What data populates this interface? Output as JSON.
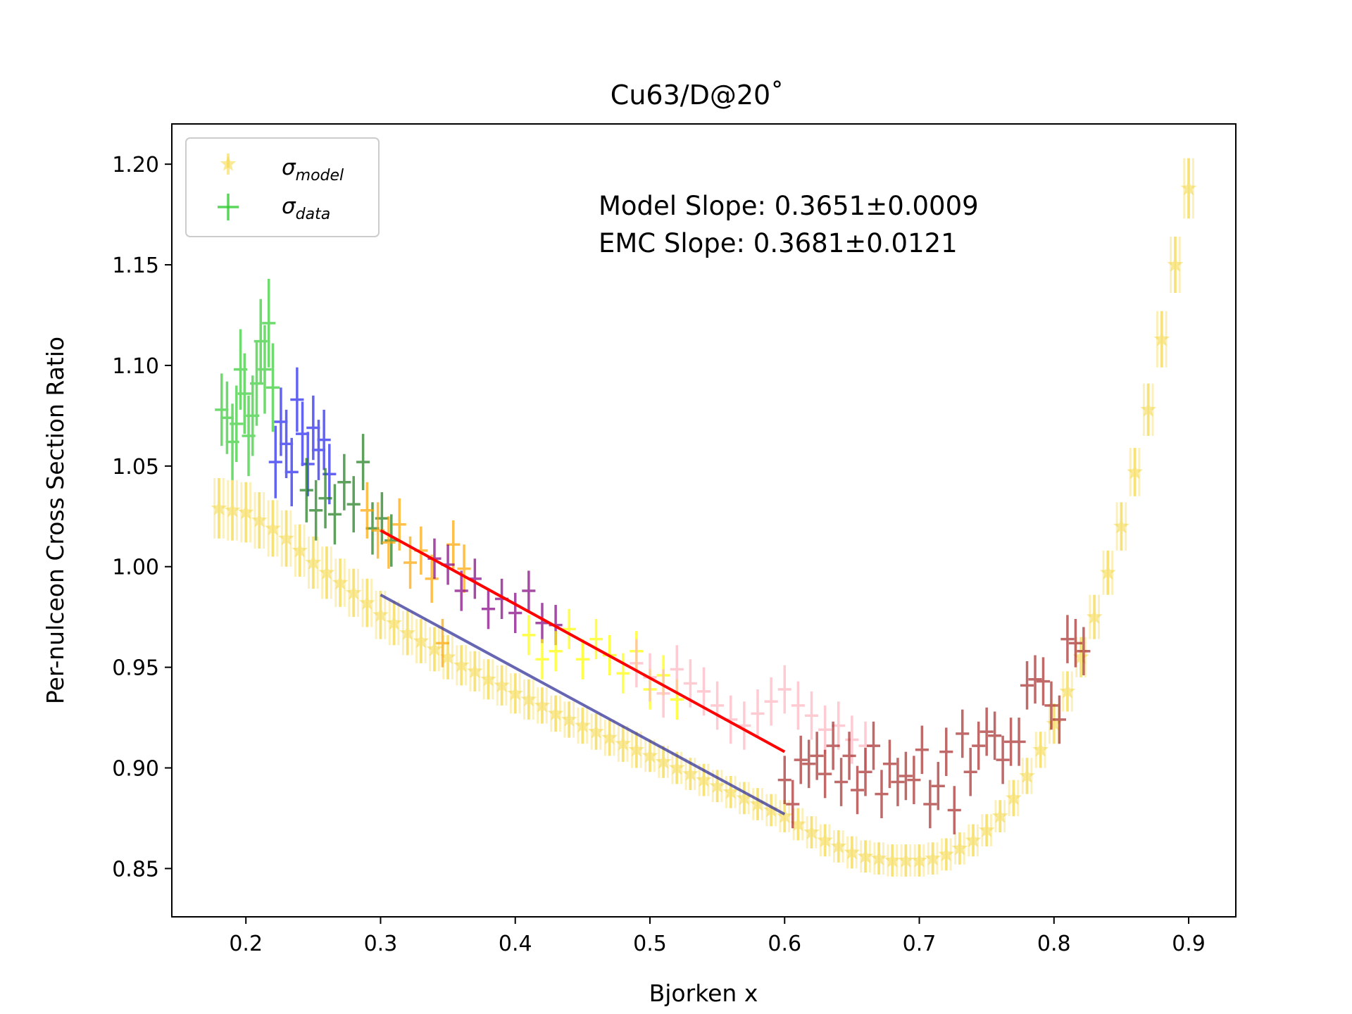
{
  "chart_data": {
    "type": "scatter",
    "title": "Cu63/D@20˚",
    "xlabel": "Bjorken x",
    "ylabel": "Per-nulceon Cross Section Ratio",
    "xlim": [
      0.145,
      0.935
    ],
    "ylim": [
      0.826,
      1.22
    ],
    "xticks": [
      0.2,
      0.3,
      0.4,
      0.5,
      0.6,
      0.7,
      0.8,
      0.9
    ],
    "xtick_labels": [
      "0.2",
      "0.3",
      "0.4",
      "0.5",
      "0.6",
      "0.7",
      "0.8",
      "0.9"
    ],
    "yticks": [
      0.85,
      0.9,
      0.95,
      1.0,
      1.05,
      1.1,
      1.15,
      1.2
    ],
    "ytick_labels": [
      "0.85",
      "0.90",
      "0.95",
      "1.00",
      "1.05",
      "1.10",
      "1.15",
      "1.20"
    ],
    "grid": false,
    "legend_position": "upper-left",
    "legend": [
      {
        "symbol": "σ",
        "sub": "model",
        "color": "#f5d742",
        "marker": "star"
      },
      {
        "symbol": "σ",
        "sub": "data",
        "color": "#33cc33",
        "marker": "plus"
      }
    ],
    "annotations": [
      "Model Slope: 0.3651±0.0009",
      "EMC Slope: 0.3681±0.0121"
    ],
    "fit_lines": [
      {
        "name": "data fit",
        "color": "#ff0000",
        "x": [
          0.3,
          0.6
        ],
        "y": [
          1.018,
          0.908
        ]
      },
      {
        "name": "model fit",
        "color": "#333399",
        "x": [
          0.3,
          0.6
        ],
        "y": [
          0.986,
          0.877
        ]
      }
    ],
    "model_series": {
      "color": "#f5d742",
      "x": [
        0.18,
        0.19,
        0.2,
        0.21,
        0.22,
        0.23,
        0.24,
        0.25,
        0.26,
        0.27,
        0.28,
        0.29,
        0.3,
        0.31,
        0.32,
        0.33,
        0.34,
        0.35,
        0.36,
        0.37,
        0.38,
        0.39,
        0.4,
        0.41,
        0.42,
        0.43,
        0.44,
        0.45,
        0.46,
        0.47,
        0.48,
        0.49,
        0.5,
        0.51,
        0.52,
        0.53,
        0.54,
        0.55,
        0.56,
        0.57,
        0.58,
        0.59,
        0.6,
        0.61,
        0.62,
        0.63,
        0.64,
        0.65,
        0.66,
        0.67,
        0.68,
        0.69,
        0.7,
        0.71,
        0.72,
        0.73,
        0.74,
        0.75,
        0.76,
        0.77,
        0.78,
        0.79,
        0.8,
        0.81,
        0.82,
        0.83,
        0.84,
        0.85,
        0.86,
        0.87,
        0.88,
        0.89,
        0.9
      ],
      "y": [
        1.029,
        1.028,
        1.027,
        1.023,
        1.019,
        1.014,
        1.008,
        1.002,
        0.997,
        0.992,
        0.987,
        0.982,
        0.976,
        0.972,
        0.967,
        0.963,
        0.959,
        0.955,
        0.951,
        0.948,
        0.944,
        0.941,
        0.937,
        0.934,
        0.931,
        0.927,
        0.924,
        0.921,
        0.918,
        0.915,
        0.912,
        0.909,
        0.906,
        0.903,
        0.9,
        0.897,
        0.894,
        0.891,
        0.888,
        0.885,
        0.882,
        0.879,
        0.876,
        0.872,
        0.868,
        0.864,
        0.861,
        0.858,
        0.856,
        0.855,
        0.854,
        0.854,
        0.854,
        0.855,
        0.857,
        0.86,
        0.864,
        0.869,
        0.876,
        0.885,
        0.896,
        0.909,
        0.922,
        0.938,
        0.955,
        0.975,
        0.997,
        1.02,
        1.047,
        1.078,
        1.113,
        1.15,
        1.188
      ],
      "err": [
        0.015,
        0.015,
        0.015,
        0.014,
        0.014,
        0.014,
        0.013,
        0.013,
        0.013,
        0.012,
        0.012,
        0.012,
        0.012,
        0.011,
        0.011,
        0.011,
        0.011,
        0.011,
        0.01,
        0.01,
        0.01,
        0.01,
        0.01,
        0.01,
        0.009,
        0.009,
        0.009,
        0.009,
        0.009,
        0.009,
        0.009,
        0.009,
        0.008,
        0.008,
        0.008,
        0.008,
        0.008,
        0.008,
        0.008,
        0.008,
        0.008,
        0.008,
        0.008,
        0.008,
        0.008,
        0.008,
        0.008,
        0.008,
        0.008,
        0.008,
        0.008,
        0.008,
        0.008,
        0.008,
        0.008,
        0.008,
        0.008,
        0.008,
        0.008,
        0.009,
        0.009,
        0.009,
        0.01,
        0.01,
        0.01,
        0.011,
        0.011,
        0.012,
        0.012,
        0.013,
        0.014,
        0.014,
        0.015
      ]
    },
    "data_series": [
      {
        "color": "#33cc33",
        "x": [
          0.182,
          0.186,
          0.19,
          0.193,
          0.196,
          0.199,
          0.202,
          0.205,
          0.208,
          0.211,
          0.214,
          0.217,
          0.22
        ],
        "y": [
          1.078,
          1.074,
          1.062,
          1.071,
          1.098,
          1.086,
          1.065,
          1.075,
          1.091,
          1.112,
          1.098,
          1.121,
          1.089
        ],
        "err": [
          0.018,
          0.018,
          0.019,
          0.019,
          0.02,
          0.02,
          0.02,
          0.02,
          0.021,
          0.021,
          0.022,
          0.022,
          0.022
        ]
      },
      {
        "color": "#2222ee",
        "x": [
          0.222,
          0.226,
          0.23,
          0.234,
          0.238,
          0.242,
          0.246,
          0.25,
          0.254,
          0.258,
          0.262
        ],
        "y": [
          1.052,
          1.072,
          1.061,
          1.047,
          1.083,
          1.066,
          1.051,
          1.069,
          1.058,
          1.063,
          1.046
        ],
        "err": [
          0.018,
          0.017,
          0.017,
          0.017,
          0.016,
          0.016,
          0.016,
          0.016,
          0.015,
          0.015,
          0.015
        ]
      },
      {
        "color": "#1a7a1a",
        "x": [
          0.245,
          0.252,
          0.259,
          0.266,
          0.273,
          0.28,
          0.287,
          0.294,
          0.301,
          0.308
        ],
        "y": [
          1.038,
          1.028,
          1.034,
          1.026,
          1.042,
          1.031,
          1.052,
          1.019,
          1.024,
          1.013
        ],
        "err": [
          0.016,
          0.015,
          0.015,
          0.015,
          0.014,
          0.014,
          0.014,
          0.013,
          0.013,
          0.013
        ]
      },
      {
        "color": "#ffa500",
        "x": [
          0.29,
          0.298,
          0.306,
          0.314,
          0.322,
          0.33,
          0.338,
          0.346,
          0.354,
          0.362
        ],
        "y": [
          1.028,
          1.018,
          1.012,
          1.021,
          1.002,
          1.008,
          0.994,
          0.962,
          1.011,
          0.999
        ],
        "err": [
          0.014,
          0.014,
          0.013,
          0.013,
          0.013,
          0.012,
          0.012,
          0.012,
          0.012,
          0.012
        ]
      },
      {
        "color": "#800080",
        "x": [
          0.34,
          0.35,
          0.36,
          0.37,
          0.38,
          0.39,
          0.4,
          0.41,
          0.42,
          0.43
        ],
        "y": [
          1.004,
          1.001,
          0.988,
          0.994,
          0.979,
          0.984,
          0.977,
          0.988,
          0.972,
          0.971
        ],
        "err": [
          0.01,
          0.01,
          0.01,
          0.01,
          0.01,
          0.01,
          0.01,
          0.01,
          0.01,
          0.01
        ]
      },
      {
        "color": "#ffff00",
        "x": [
          0.41,
          0.42,
          0.43,
          0.44,
          0.45,
          0.46,
          0.47,
          0.48,
          0.49,
          0.5,
          0.51,
          0.52
        ],
        "y": [
          0.966,
          0.954,
          0.958,
          0.969,
          0.954,
          0.964,
          0.956,
          0.947,
          0.958,
          0.939,
          0.946,
          0.934
        ],
        "err": [
          0.01,
          0.01,
          0.01,
          0.01,
          0.01,
          0.01,
          0.01,
          0.01,
          0.01,
          0.01,
          0.01,
          0.01
        ]
      },
      {
        "color": "#ffb6c1",
        "x": [
          0.49,
          0.5,
          0.51,
          0.52,
          0.53,
          0.54,
          0.55,
          0.56,
          0.57,
          0.58,
          0.59,
          0.6,
          0.61,
          0.62,
          0.63,
          0.64,
          0.65,
          0.66
        ],
        "y": [
          0.952,
          0.945,
          0.937,
          0.949,
          0.942,
          0.938,
          0.931,
          0.924,
          0.921,
          0.927,
          0.933,
          0.939,
          0.931,
          0.926,
          0.919,
          0.921,
          0.914,
          0.911
        ],
        "err": [
          0.012,
          0.012,
          0.012,
          0.012,
          0.012,
          0.012,
          0.012,
          0.012,
          0.012,
          0.012,
          0.012,
          0.012,
          0.012,
          0.012,
          0.012,
          0.012,
          0.012,
          0.012
        ]
      },
      {
        "color": "#a52a2a",
        "x": [
          0.6,
          0.606,
          0.612,
          0.618,
          0.624,
          0.63,
          0.636,
          0.642,
          0.648,
          0.654,
          0.66,
          0.666,
          0.672,
          0.678,
          0.684,
          0.69,
          0.696,
          0.702,
          0.708,
          0.714,
          0.72,
          0.726,
          0.732,
          0.738,
          0.744,
          0.75,
          0.756,
          0.762,
          0.768,
          0.774,
          0.78,
          0.786,
          0.792,
          0.798,
          0.804,
          0.81,
          0.816,
          0.822
        ],
        "y": [
          0.894,
          0.882,
          0.904,
          0.902,
          0.906,
          0.897,
          0.911,
          0.893,
          0.906,
          0.889,
          0.898,
          0.911,
          0.887,
          0.902,
          0.893,
          0.896,
          0.894,
          0.909,
          0.882,
          0.891,
          0.908,
          0.879,
          0.917,
          0.898,
          0.911,
          0.918,
          0.916,
          0.904,
          0.913,
          0.913,
          0.941,
          0.944,
          0.943,
          0.931,
          0.924,
          0.964,
          0.962,
          0.958
        ],
        "err": [
          0.012,
          0.012,
          0.012,
          0.012,
          0.012,
          0.012,
          0.012,
          0.012,
          0.012,
          0.012,
          0.012,
          0.012,
          0.012,
          0.012,
          0.012,
          0.012,
          0.012,
          0.012,
          0.012,
          0.012,
          0.012,
          0.012,
          0.012,
          0.012,
          0.012,
          0.012,
          0.012,
          0.012,
          0.012,
          0.012,
          0.012,
          0.012,
          0.012,
          0.012,
          0.012,
          0.012,
          0.012,
          0.012
        ]
      }
    ]
  }
}
